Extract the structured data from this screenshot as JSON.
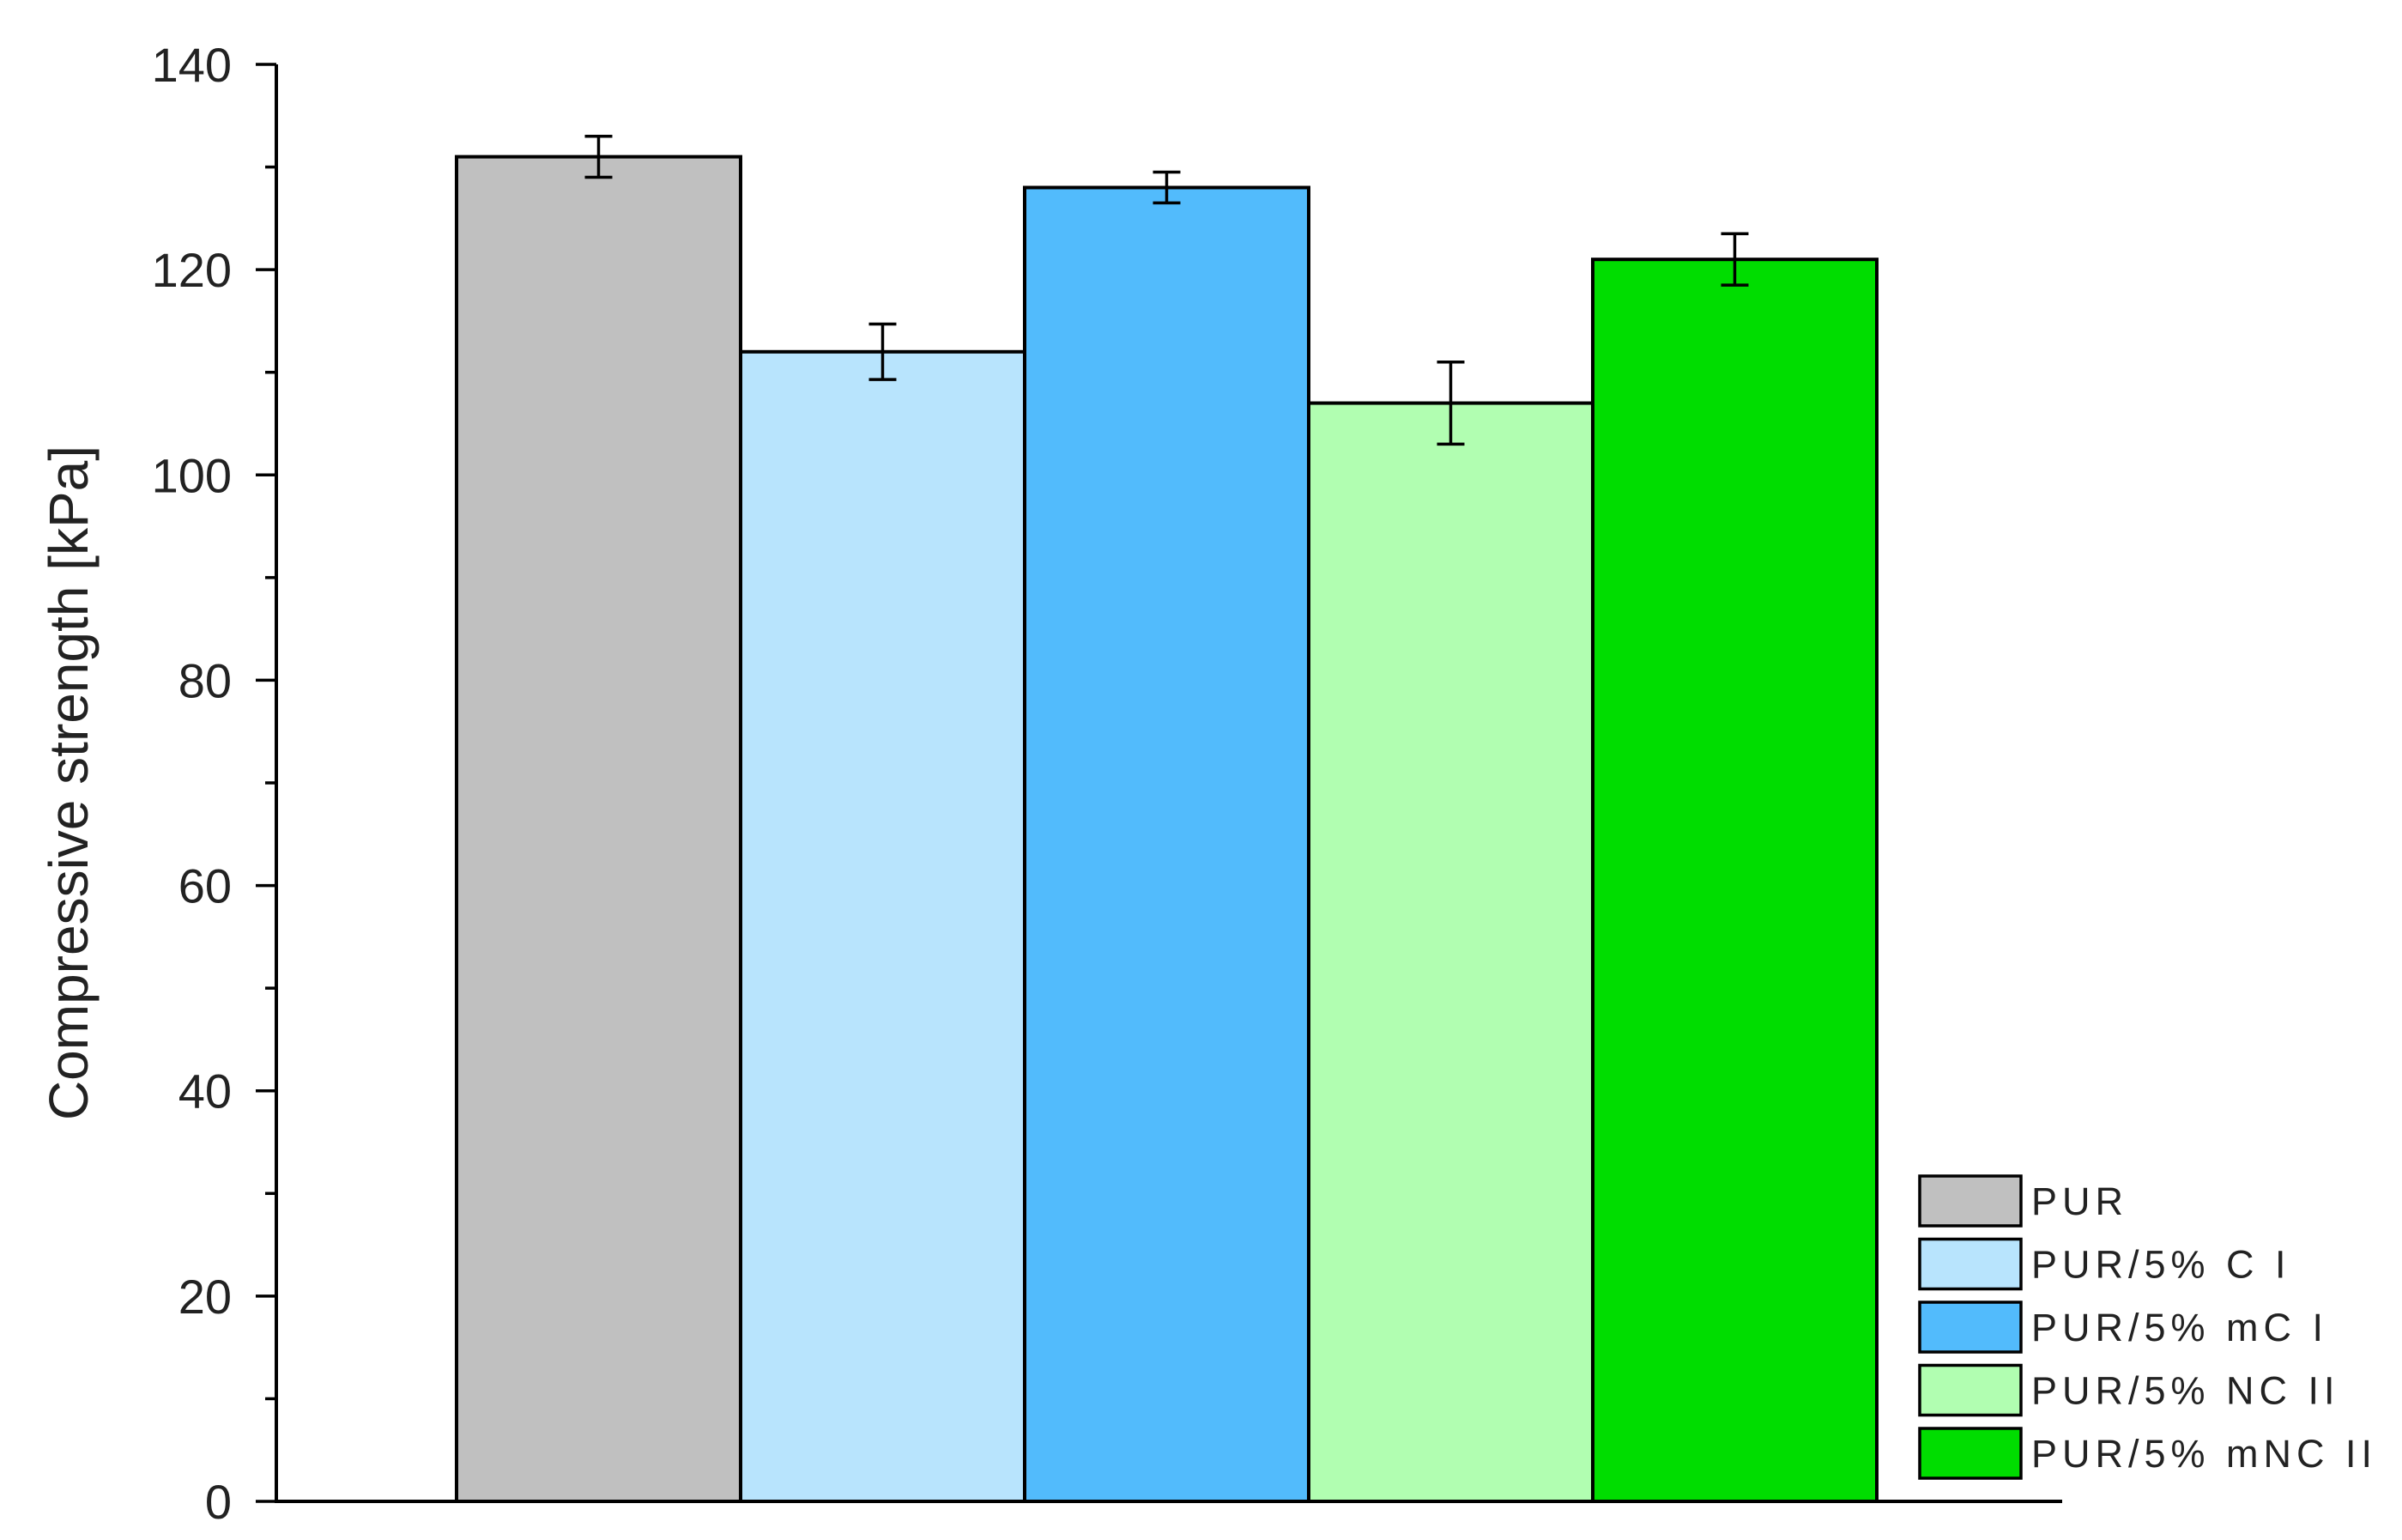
{
  "chart_data": {
    "type": "bar",
    "ylabel": "Compressive strength [kPa]",
    "xlabel": "",
    "ylim": [
      0,
      140
    ],
    "y_major_ticks": [
      0,
      20,
      40,
      60,
      80,
      100,
      120,
      140
    ],
    "y_minor_step": 10,
    "grid": false,
    "legend_position": "bottom-right",
    "bar_border_color": "#000000",
    "series": [
      {
        "name": "PUR",
        "value": 131,
        "error": 2,
        "color": "#c0c0c0"
      },
      {
        "name": "PUR/5% C I",
        "value": 112,
        "error": 2.7,
        "color": "#b8e4fd"
      },
      {
        "name": "PUR/5% mC I",
        "value": 128,
        "error": 1.5,
        "color": "#52bbfc"
      },
      {
        "name": "PUR/5% NC II",
        "value": 107,
        "error": 4,
        "color": "#b1feb1"
      },
      {
        "name": "PUR/5% mNC II",
        "value": 121,
        "error": 2.5,
        "color": "#00dd00"
      }
    ]
  }
}
